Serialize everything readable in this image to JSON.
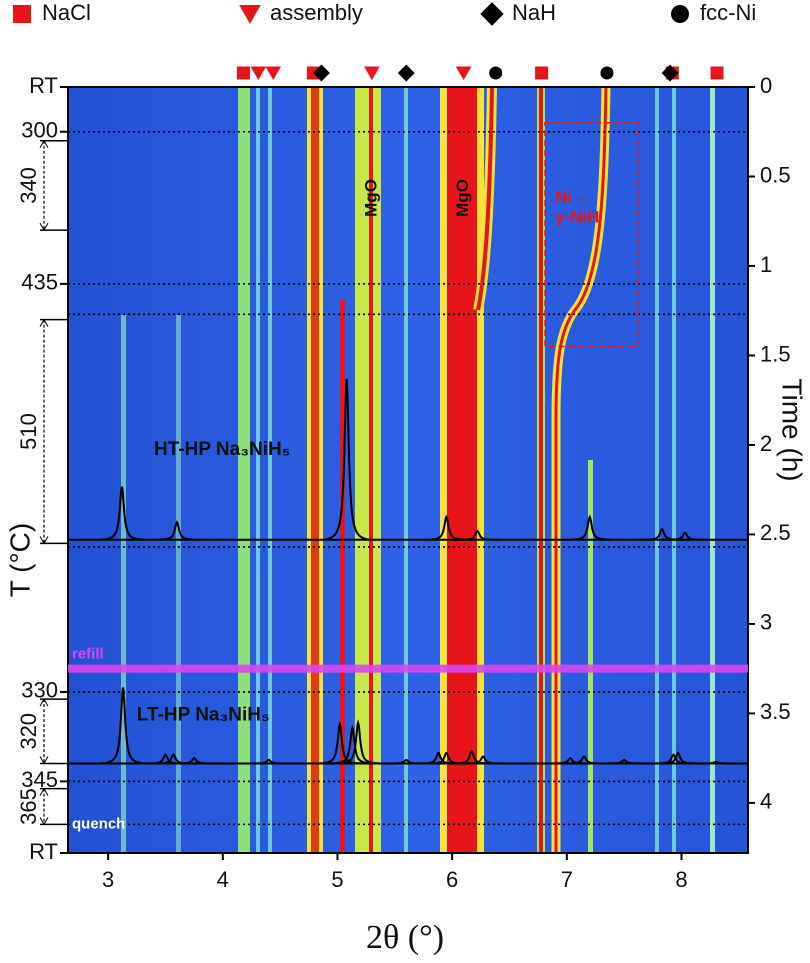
{
  "chart_data": {
    "type": "heatmap-overlay",
    "x_label": "2θ (°)",
    "y2_label": "Time (h)",
    "y_label": "T (°C)",
    "xlim": [
      2.65,
      8.58
    ],
    "xticks": [
      3,
      4,
      5,
      6,
      7,
      8
    ],
    "y2lim": [
      0,
      4.28
    ],
    "y2ticks": [
      0,
      0.5,
      1,
      1.5,
      2,
      2.5,
      3,
      3.5,
      4
    ],
    "phases": [
      {
        "name": "NaCl",
        "marker": "square",
        "color": "#e8141c",
        "x": [
          4.18,
          4.79,
          6.78,
          7.92,
          8.31
        ]
      },
      {
        "name": "assembly",
        "marker": "triangle",
        "color": "#e8141c",
        "x": [
          4.31,
          4.44,
          5.3,
          6.1
        ]
      },
      {
        "name": "NaH",
        "marker": "diamond",
        "color": "#000000",
        "x": [
          4.86,
          5.6,
          7.9
        ]
      },
      {
        "name": "fcc-Ni",
        "marker": "circle",
        "color": "#000000",
        "x": [
          6.38,
          7.35
        ]
      }
    ],
    "temperature_labels": [
      {
        "label": "RT",
        "time": 0
      },
      {
        "label": "300",
        "time": 0.25
      },
      {
        "label": "435",
        "time": 1.1
      },
      {
        "label": "330",
        "time": 3.38
      },
      {
        "label": "345",
        "time": 3.88
      },
      {
        "label": "RT",
        "time": 4.28
      }
    ],
    "ranges": [
      {
        "label": "340",
        "time": [
          0.3,
          0.8
        ]
      },
      {
        "label": "510",
        "time": [
          1.3,
          2.55
        ]
      },
      {
        "label": "320",
        "time": [
          3.42,
          3.78
        ]
      },
      {
        "label": "365",
        "time": [
          3.92,
          4.12
        ]
      }
    ],
    "reference_lines": [
      0.25,
      1.1,
      1.27,
      2.57,
      3.38,
      3.88,
      4.12
    ],
    "patterns": [
      {
        "name": "HT-HP Na₃NiH₅",
        "baseline": 2.53,
        "peaks_x": [
          3.12,
          3.6,
          5.08,
          5.95,
          6.22,
          7.2,
          7.83,
          8.03
        ],
        "peaks_top": [
          2.23,
          2.43,
          1.62,
          2.4,
          2.48,
          2.4,
          2.47,
          2.49
        ]
      },
      {
        "name": "LT-HP Na₃NiH₅",
        "baseline": 3.78,
        "peaks_x": [
          3.13,
          3.5,
          3.57,
          3.75,
          4.4,
          5.02,
          5.13,
          5.18,
          5.6,
          5.88,
          5.95,
          6.17,
          6.27,
          7.03,
          7.15,
          7.5,
          7.93,
          7.97,
          8.3
        ],
        "peaks_top": [
          3.35,
          3.73,
          3.73,
          3.75,
          3.76,
          3.56,
          3.58,
          3.55,
          3.76,
          3.72,
          3.72,
          3.71,
          3.74,
          3.75,
          3.74,
          3.76,
          3.73,
          3.72,
          3.77
        ]
      }
    ],
    "annotations": [
      {
        "text": "MgO",
        "x": 5.3,
        "time": 0.62
      },
      {
        "text": "MgO",
        "x": 6.1,
        "time": 0.62
      }
    ],
    "events": [
      {
        "text": "refill",
        "time": 3.25,
        "color": "#d946ef"
      },
      {
        "text": "quench",
        "time": 4.12,
        "color": "#ffffff"
      }
    ],
    "region": {
      "lines": [
        "Ni→",
        "γ-NiH"
      ],
      "xlim": [
        6.81,
        7.62
      ],
      "ylim": [
        0.2,
        1.45
      ],
      "color": "#e8141c"
    }
  }
}
